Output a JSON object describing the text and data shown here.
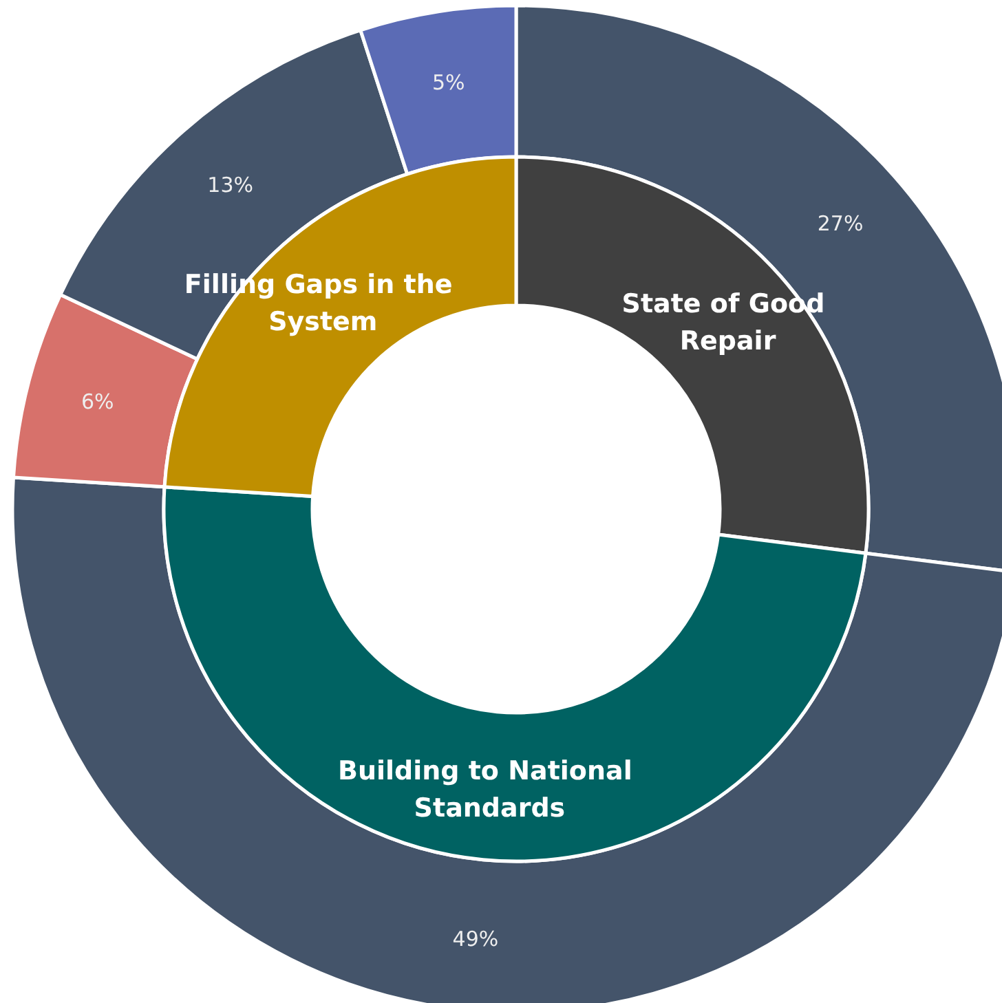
{
  "chart_data": [
    {
      "type": "donut",
      "categories": [
        null,
        null,
        null,
        null,
        null
      ],
      "values": [
        27,
        49,
        6,
        13,
        5
      ],
      "colors": [
        "#44546a",
        "#44546a",
        "#d7716b",
        "#44546a",
        "#5b6bb5"
      ],
      "value_labels": [
        "27%",
        "49%",
        "6%",
        "13%",
        "5%"
      ]
    },
    {
      "type": "donut",
      "categories": [
        "State of Good Repair",
        "Building to National Standards",
        "Filling Gaps in the System"
      ],
      "values": [
        27,
        49,
        24
      ],
      "colors": [
        "#404040",
        "#006262",
        "#bf8f00"
      ]
    }
  ]
}
